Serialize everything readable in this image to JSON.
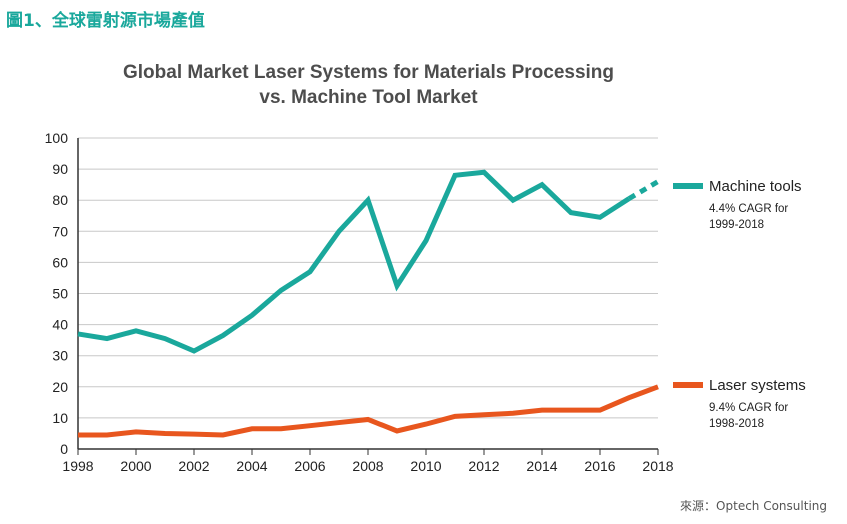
{
  "figure_label": "圖1、全球雷射源市場產值",
  "source_note": "來源：Optech Consulting",
  "chart_data": {
    "type": "line",
    "title": [
      "Global Market Laser Systems for Materials Processing",
      "vs. Machine Tool Market"
    ],
    "xlabel": "",
    "ylabel": "",
    "xlim": [
      1998,
      2018
    ],
    "ylim": [
      0,
      100
    ],
    "x_ticks": [
      1998,
      2000,
      2002,
      2004,
      2006,
      2008,
      2010,
      2012,
      2014,
      2016,
      2018
    ],
    "y_ticks": [
      0,
      10,
      20,
      30,
      40,
      50,
      60,
      70,
      80,
      90,
      100
    ],
    "grid": "horizontal",
    "legend_position": "right",
    "series": [
      {
        "name": "Machine tools",
        "note": [
          "4.4% CAGR for",
          "1999-2018"
        ],
        "color": "#1aa89c",
        "x": [
          1998,
          1999,
          2000,
          2001,
          2002,
          2003,
          2004,
          2005,
          2006,
          2007,
          2008,
          2009,
          2010,
          2011,
          2012,
          2013,
          2014,
          2015,
          2016,
          2017
        ],
        "y": [
          37,
          35.5,
          38,
          35.5,
          31.5,
          36.5,
          43,
          51,
          57,
          70,
          80,
          52.5,
          67,
          88,
          89,
          80,
          85,
          76,
          74.5,
          80.5
        ],
        "forecast_x": [
          2017,
          2018
        ],
        "forecast_y": [
          80.5,
          86
        ]
      },
      {
        "name": "Laser systems",
        "note": [
          "9.4% CAGR for",
          "1998-2018"
        ],
        "color": "#e8561e",
        "x": [
          1998,
          1999,
          2000,
          2001,
          2002,
          2003,
          2004,
          2005,
          2006,
          2007,
          2008,
          2009,
          2010,
          2011,
          2012,
          2013,
          2014,
          2015,
          2016,
          2017,
          2018
        ],
        "y": [
          4.5,
          4.5,
          5.5,
          5,
          4.8,
          4.5,
          6.5,
          6.5,
          7.5,
          8.5,
          9.5,
          5.8,
          8,
          10.5,
          11,
          11.5,
          12.5,
          12.5,
          12.5,
          16.5,
          20
        ]
      }
    ]
  }
}
